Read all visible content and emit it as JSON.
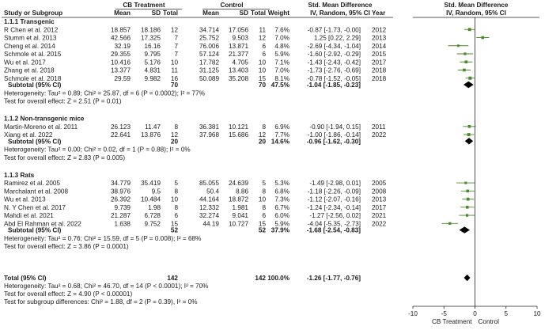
{
  "header": {
    "group_cb": "CB Treatment",
    "group_control": "Control",
    "smd_title": "Std. Mean Difference",
    "smd_sub": "IV, Random, 95% CI",
    "plot_title": "Std. Mean Difference",
    "plot_sub": "IV, Random, 95% CI",
    "columns": [
      "Study or Subgroup",
      "Mean",
      "SD",
      "Total",
      "Mean",
      "SD",
      "Total",
      "Weight",
      "Year"
    ]
  },
  "subgroups": [
    {
      "title": "1.1.1 Transgenic",
      "studies": [
        {
          "study": "R Chen et al. 2012",
          "cb_mean": "18.857",
          "cb_sd": "18.186",
          "cb_n": "12",
          "ctl_mean": "34.714",
          "ctl_sd": "17.056",
          "ctl_n": "11",
          "weight": "7.6%",
          "ci_text": "-0.87 [-1.73, -0.00]",
          "year": "2012",
          "smd": -0.87,
          "lo": -1.73,
          "hi": 0.0,
          "w": 7.6
        },
        {
          "study": "Stumm et al. 2013",
          "cb_mean": "42.566",
          "cb_sd": "17.325",
          "cb_n": "7",
          "ctl_mean": "25.752",
          "ctl_sd": "9.503",
          "ctl_n": "12",
          "weight": "7.0%",
          "ci_text": "1.25 [0.22, 2.29]",
          "year": "2013",
          "smd": 1.25,
          "lo": 0.22,
          "hi": 2.29,
          "w": 7.0
        },
        {
          "study": "Cheng et al. 2014",
          "cb_mean": "32.19",
          "cb_sd": "16.16",
          "cb_n": "7",
          "ctl_mean": "76.006",
          "ctl_sd": "13.871",
          "ctl_n": "6",
          "weight": "4.8%",
          "ci_text": "-2.69 [-4.34, -1.04]",
          "year": "2014",
          "smd": -2.69,
          "lo": -4.34,
          "hi": -1.04,
          "w": 4.8
        },
        {
          "study": "Schmole et al. 2015",
          "cb_mean": "29.355",
          "cb_sd": "9.795",
          "cb_n": "7",
          "ctl_mean": "57.124",
          "ctl_sd": "21.377",
          "ctl_n": "6",
          "weight": "5.9%",
          "ci_text": "-1.60 [-2.92, -0.29]",
          "year": "2015",
          "smd": -1.6,
          "lo": -2.92,
          "hi": -0.29,
          "w": 5.9
        },
        {
          "study": "Wu et al. 2017",
          "cb_mean": "10.416",
          "cb_sd": "5.176",
          "cb_n": "10",
          "ctl_mean": "17.782",
          "ctl_sd": "4.705",
          "ctl_n": "10",
          "weight": "7.1%",
          "ci_text": "-1.43 [-2.43, -0.42]",
          "year": "2017",
          "smd": -1.43,
          "lo": -2.43,
          "hi": -0.42,
          "w": 7.1
        },
        {
          "study": "Zhang et al. 2018",
          "cb_mean": "13.377",
          "cb_sd": "4.831",
          "cb_n": "11",
          "ctl_mean": "31.125",
          "ctl_sd": "13.403",
          "ctl_n": "10",
          "weight": "7.0%",
          "ci_text": "-1.73 [-2.76, -0.69]",
          "year": "2018",
          "smd": -1.73,
          "lo": -2.76,
          "hi": -0.69,
          "w": 7.0
        },
        {
          "study": "Schmole et al. 2018",
          "cb_mean": "29.59",
          "cb_sd": "9.982",
          "cb_n": "16",
          "ctl_mean": "50.089",
          "ctl_sd": "35.208",
          "ctl_n": "15",
          "weight": "8.1%",
          "ci_text": "-0.78 [-1.52, -0.05]",
          "year": "2018",
          "smd": -0.78,
          "lo": -1.52,
          "hi": -0.05,
          "w": 8.1
        }
      ],
      "subtotal": {
        "label": "Subtotal (95% CI)",
        "cb_n": "70",
        "ctl_n": "70",
        "weight": "47.5%",
        "ci_text": "-1.04 [-1.85, -0.23]",
        "smd": -1.04,
        "lo": -1.85,
        "hi": -0.23
      },
      "heterogeneity": "Heterogeneity: Tau² = 0.89; Chi² = 25.87, df = 6 (P = 0.0002); I² = 77%",
      "overall_test": "Test for overall effect: Z = 2.51 (P = 0.01)"
    },
    {
      "title": "1.1.2 Non-transgenic mice",
      "studies": [
        {
          "study": "Martin-Moreno et al. 2011",
          "cb_mean": "26.123",
          "cb_sd": "11.47",
          "cb_n": "8",
          "ctl_mean": "36.381",
          "ctl_sd": "10.121",
          "ctl_n": "8",
          "weight": "6.9%",
          "ci_text": "-0.90 [-1.94, 0.15]",
          "year": "2011",
          "smd": -0.9,
          "lo": -1.94,
          "hi": 0.15,
          "w": 6.9
        },
        {
          "study": "Xiang et al. 2022",
          "cb_mean": "22.641",
          "cb_sd": "13.876",
          "cb_n": "12",
          "ctl_mean": "37.968",
          "ctl_sd": "15.686",
          "ctl_n": "12",
          "weight": "7.7%",
          "ci_text": "-1.00 [-1.86, -0.14]",
          "year": "2022",
          "smd": -1.0,
          "lo": -1.86,
          "hi": -0.14,
          "w": 7.7
        }
      ],
      "subtotal": {
        "label": "Subtotal (95% CI)",
        "cb_n": "20",
        "ctl_n": "20",
        "weight": "14.6%",
        "ci_text": "-0.96 [-1.62, -0.30]",
        "smd": -0.96,
        "lo": -1.62,
        "hi": -0.3
      },
      "heterogeneity": "Heterogeneity: Tau² = 0.00; Chi² = 0.02, df = 1 (P = 0.88); I² = 0%",
      "overall_test": "Test for overall effect: Z = 2.83 (P = 0.005)"
    },
    {
      "title": "1.1.3 Rats",
      "studies": [
        {
          "study": "Ramirez et al. 2005",
          "cb_mean": "34.779",
          "cb_sd": "35.419",
          "cb_n": "5",
          "ctl_mean": "85.055",
          "ctl_sd": "24.639",
          "ctl_n": "5",
          "weight": "5.3%",
          "ci_text": "-1.49 [-2.98, 0.01]",
          "year": "2005",
          "smd": -1.49,
          "lo": -2.98,
          "hi": 0.01,
          "w": 5.3
        },
        {
          "study": "Marchalant et al. 2008",
          "cb_mean": "38.976",
          "cb_sd": "9.5",
          "cb_n": "8",
          "ctl_mean": "50.4",
          "ctl_sd": "8.86",
          "ctl_n": "8",
          "weight": "6.8%",
          "ci_text": "-1.18 [-2.26, -0.09]",
          "year": "2008",
          "smd": -1.18,
          "lo": -2.26,
          "hi": -0.09,
          "w": 6.8
        },
        {
          "study": "Wu et al. 2013",
          "cb_mean": "26.392",
          "cb_sd": "10.484",
          "cb_n": "10",
          "ctl_mean": "44.164",
          "ctl_sd": "18.872",
          "ctl_n": "10",
          "weight": "7.3%",
          "ci_text": "-1.12 [-2.07, -0.16]",
          "year": "2013",
          "smd": -1.12,
          "lo": -2.07,
          "hi": -0.16,
          "w": 7.3
        },
        {
          "study": "N. Y Chen et al. 2017",
          "cb_mean": "9.739",
          "cb_sd": "1.98",
          "cb_n": "8",
          "ctl_mean": "12.332",
          "ctl_sd": "1.981",
          "ctl_n": "8",
          "weight": "6.7%",
          "ci_text": "-1.24 [-2.34, -0.14]",
          "year": "2017",
          "smd": -1.24,
          "lo": -2.34,
          "hi": -0.14,
          "w": 6.7
        },
        {
          "study": "Mahdi et al. 2021",
          "cb_mean": "21.287",
          "cb_sd": "6.728",
          "cb_n": "6",
          "ctl_mean": "32.274",
          "ctl_sd": "9.041",
          "ctl_n": "6",
          "weight": "6.0%",
          "ci_text": "-1.27 [-2.56, 0.02]",
          "year": "2021",
          "smd": -1.27,
          "lo": -2.56,
          "hi": 0.02,
          "w": 6.0
        },
        {
          "study": "Abd El Rahman et al. 2022",
          "cb_mean": "1.638",
          "cb_sd": "9.752",
          "cb_n": "15",
          "ctl_mean": "44.19",
          "ctl_sd": "10.727",
          "ctl_n": "15",
          "weight": "5.9%",
          "ci_text": "-4.04 [-5.35, -2.73]",
          "year": "2022",
          "smd": -4.04,
          "lo": -5.35,
          "hi": -2.73,
          "w": 5.9
        }
      ],
      "subtotal": {
        "label": "Subtotal (95% CI)",
        "cb_n": "52",
        "ctl_n": "52",
        "weight": "37.9%",
        "ci_text": "-1.68 [-2.54, -0.83]",
        "smd": -1.68,
        "lo": -2.54,
        "hi": -0.83
      },
      "heterogeneity": "Heterogeneity: Tau² = 0.76; Chi² = 15.59, df = 5 (P = 0.008); I² = 68%",
      "overall_test": "Test for overall effect: Z = 3.86 (P = 0.0001)"
    }
  ],
  "total": {
    "label": "Total (95% CI)",
    "cb_n": "142",
    "ctl_n": "142",
    "weight": "100.0%",
    "ci_text": "-1.26 [-1.77, -0.76]",
    "smd": -1.26,
    "lo": -1.77,
    "hi": -0.76,
    "heterogeneity": "Heterogeneity: Tau² = 0.68; Chi² = 46.70, df = 14 (P < 0.0001); I² = 70%",
    "overall_test": "Test for overall effect: Z = 4.90 (P < 0.00001)",
    "subgroup_test": "Test for subgroup differences: Chi² = 1.88, df = 2 (P = 0.39), I² = 0%"
  },
  "chart_data": {
    "type": "forest",
    "title": "Std. Mean Difference",
    "subtitle": "IV, Random, 95% CI",
    "xlim": [
      -10,
      10
    ],
    "ticks": [
      "-10",
      "-5",
      "0",
      "5",
      "10"
    ],
    "tick_values": [
      -10,
      -5,
      0,
      5,
      10
    ],
    "xlabel_left": "CB Treatment",
    "xlabel_right": "Control",
    "accent_color": "#4a8a2a",
    "diamond_color": "#000000"
  }
}
